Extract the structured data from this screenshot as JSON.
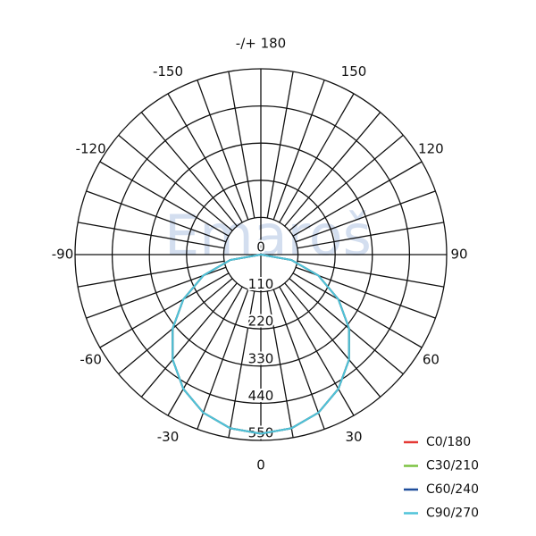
{
  "chart_data": {
    "type": "polar",
    "watermark": "Emaroš",
    "theta_zero": "bottom",
    "thetaticks": [
      {
        "value": 180,
        "label": "-/+ 180"
      },
      -150,
      150,
      -120,
      120,
      -90,
      90,
      -60,
      60,
      -30,
      30,
      0
    ],
    "rlim": [
      0,
      550
    ],
    "rticks": [
      0,
      110,
      220,
      330,
      440,
      550
    ],
    "x": [
      -90,
      -80,
      -70,
      -60,
      -50,
      -40,
      -30,
      -20,
      -10,
      0,
      10,
      20,
      30,
      40,
      50,
      60,
      70,
      80,
      90
    ],
    "series": [
      {
        "name": "C0/180",
        "color": "#e53935",
        "values": [
          0,
          92,
          181,
          265,
          341,
          406,
          459,
          498,
          522,
          530,
          522,
          498,
          459,
          406,
          341,
          265,
          181,
          92,
          0
        ]
      },
      {
        "name": "C30/210",
        "color": "#7cc242",
        "values": [
          0,
          92,
          181,
          265,
          341,
          406,
          459,
          498,
          522,
          530,
          522,
          498,
          459,
          406,
          341,
          265,
          181,
          92,
          0
        ]
      },
      {
        "name": "C60/240",
        "color": "#1f4e9c",
        "values": [
          0,
          92,
          181,
          265,
          341,
          406,
          459,
          498,
          522,
          530,
          522,
          498,
          459,
          406,
          341,
          265,
          181,
          92,
          0
        ]
      },
      {
        "name": "C90/270",
        "color": "#4fc3d9",
        "values": [
          0,
          92,
          181,
          265,
          341,
          406,
          459,
          498,
          522,
          530,
          522,
          498,
          459,
          406,
          341,
          265,
          181,
          92,
          0
        ]
      }
    ]
  }
}
